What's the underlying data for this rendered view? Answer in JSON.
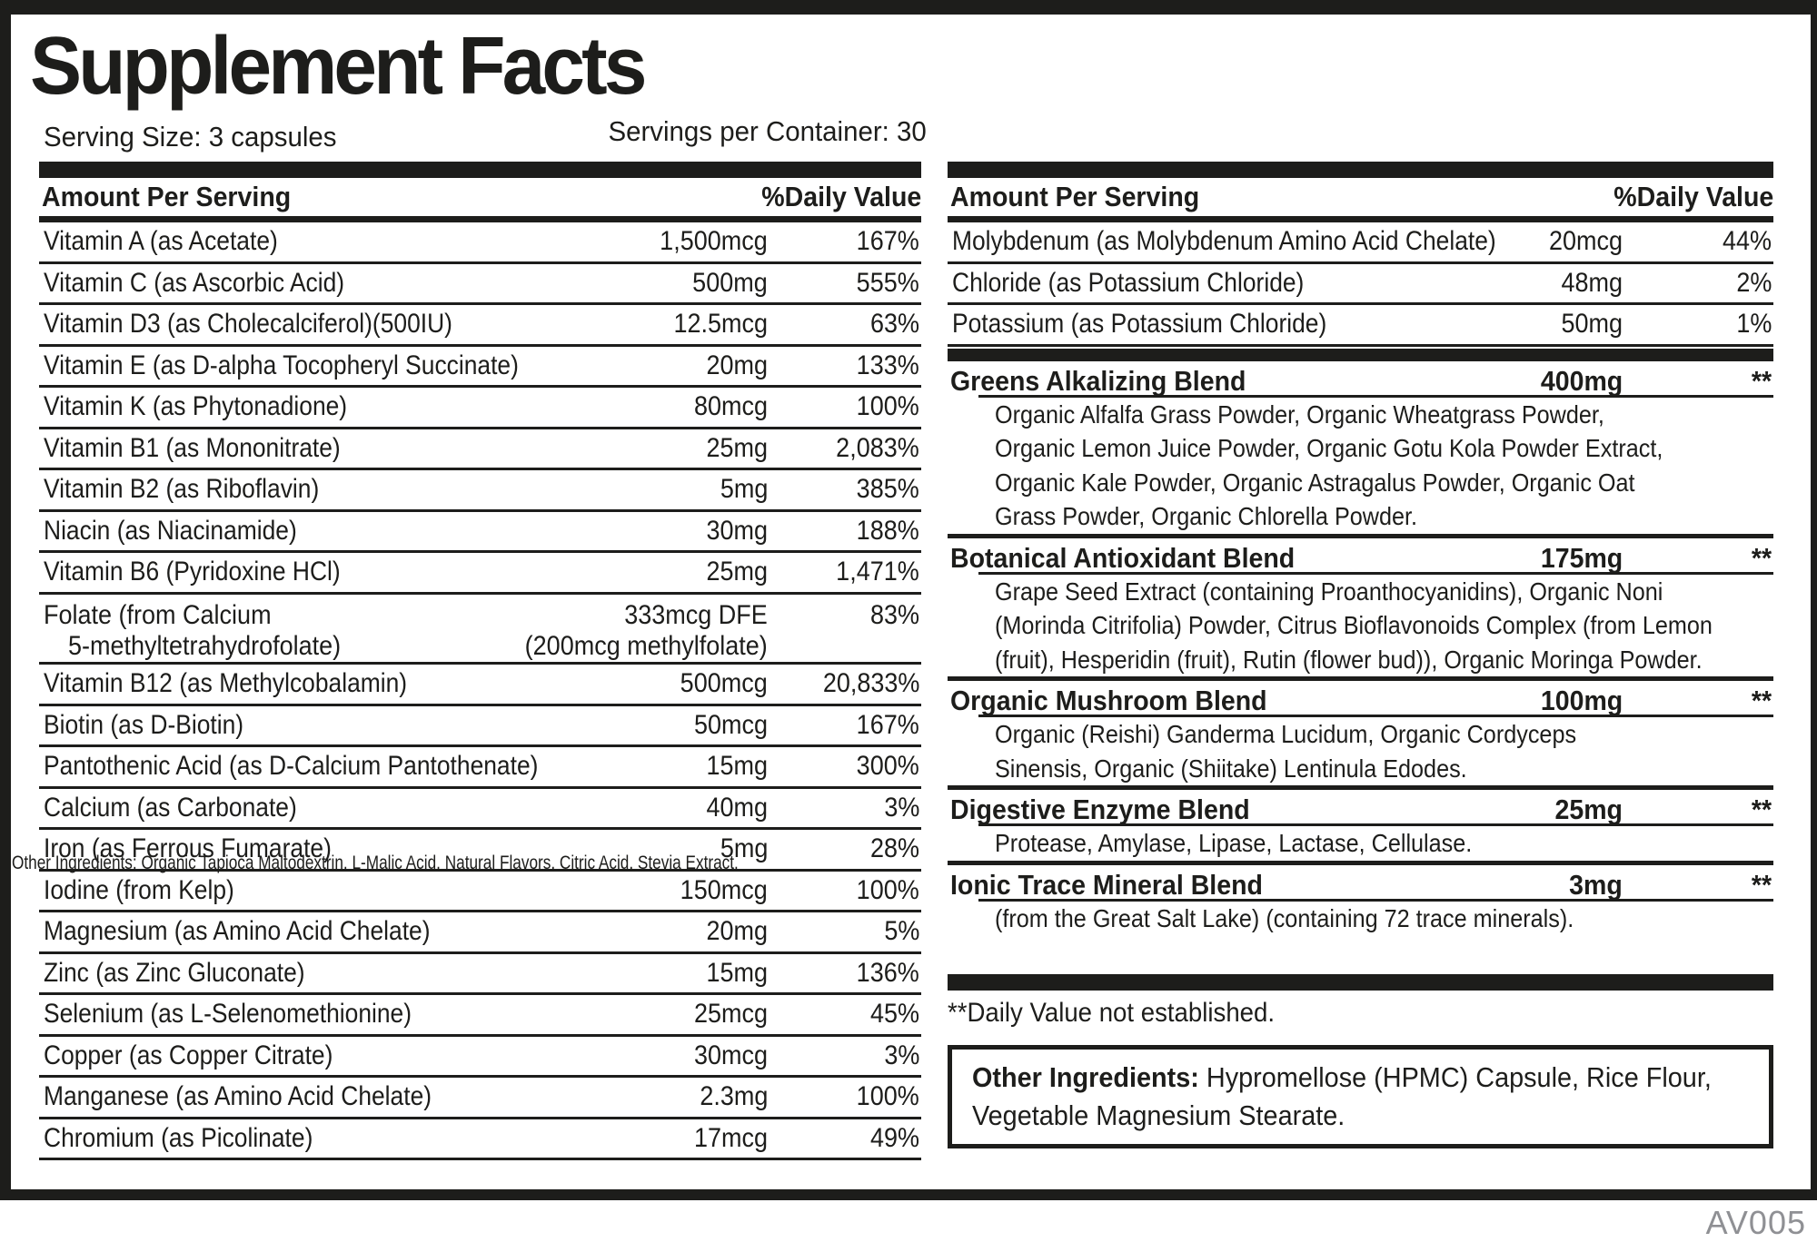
{
  "title": "Supplement Facts",
  "serving": {
    "size_label": "Serving Size: 3 capsules",
    "per_container_label": "Servings per Container: 30"
  },
  "columns": {
    "amount_header": "Amount Per Serving",
    "dv_header": "%Daily Value"
  },
  "left_table": {
    "rows": [
      {
        "name": "Vitamin A (as Acetate)",
        "amount": "1,500mcg",
        "dv": "167%"
      },
      {
        "name": "Vitamin C (as Ascorbic Acid)",
        "amount": "500mg",
        "dv": "555%"
      },
      {
        "name": "Vitamin D3 (as Cholecalciferol)(500IU)",
        "amount": "12.5mcg",
        "dv": "63%"
      },
      {
        "name": "Vitamin E (as D-alpha Tocopheryl Succinate)",
        "amount": "20mg",
        "dv": "133%"
      },
      {
        "name": "Vitamin K (as Phytonadione)",
        "amount": "80mcg",
        "dv": "100%"
      },
      {
        "name": "Vitamin B1 (as Mononitrate)",
        "amount": "25mg",
        "dv": "2,083%"
      },
      {
        "name": "Vitamin B2 (as Riboflavin)",
        "amount": "5mg",
        "dv": "385%"
      },
      {
        "name": "Niacin (as Niacinamide)",
        "amount": "30mg",
        "dv": "188%"
      },
      {
        "name": "Vitamin B6 (Pyridoxine HCl)",
        "amount": "25mg",
        "dv": "1,471%"
      },
      {
        "name_line1": "Folate (from Calcium",
        "name_line2": "5-methyltetrahydrofolate)",
        "amount_line1": "333mcg DFE",
        "amount_line2": "(200mcg methylfolate)",
        "dv": "83%"
      },
      {
        "name": "Vitamin B12 (as Methylcobalamin)",
        "amount": "500mcg",
        "dv": "20,833%"
      },
      {
        "name": "Biotin (as D-Biotin)",
        "amount": "50mcg",
        "dv": "167%"
      },
      {
        "name": "Pantothenic Acid (as D-Calcium Pantothenate)",
        "amount": "15mg",
        "dv": "300%"
      },
      {
        "name": "Calcium (as Carbonate)",
        "amount": "40mg",
        "dv": "3%"
      },
      {
        "name": "Iron (as Ferrous Fumarate)",
        "amount": "5mg",
        "dv": "28%"
      },
      {
        "name": "Iodine (from Kelp)",
        "amount": "150mcg",
        "dv": "100%"
      },
      {
        "name": "Magnesium (as Amino Acid Chelate)",
        "amount": "20mg",
        "dv": "5%"
      },
      {
        "name": "Zinc (as Zinc Gluconate)",
        "amount": "15mg",
        "dv": "136%"
      },
      {
        "name": "Selenium (as L-Selenomethionine)",
        "amount": "25mcg",
        "dv": "45%"
      },
      {
        "name": "Copper (as Copper Citrate)",
        "amount": "30mcg",
        "dv": "3%"
      },
      {
        "name": "Manganese (as Amino Acid Chelate)",
        "amount": "2.3mg",
        "dv": "100%"
      },
      {
        "name": "Chromium (as Picolinate)",
        "amount": "17mcg",
        "dv": "49%"
      }
    ]
  },
  "struck_overlay_text": "Other Ingredients: Organic Tapioca Maltodextrin, L-Malic Acid, Natural Flavors, Citric Acid, Stevia Extract.",
  "right_table": {
    "rows": [
      {
        "name": "Molybdenum (as Molybdenum Amino Acid Chelate)",
        "amount": "20mcg",
        "dv": "44%"
      },
      {
        "name": "Chloride (as Potassium Chloride)",
        "amount": "48mg",
        "dv": "2%"
      },
      {
        "name": "Potassium (as Potassium Chloride)",
        "amount": "50mg",
        "dv": "1%"
      }
    ]
  },
  "blends": [
    {
      "name": "Greens Alkalizing Blend",
      "amount": "400mg",
      "dv": "**",
      "ingredients_lines": [
        "Organic Alfalfa Grass Powder, Organic Wheatgrass Powder,",
        "Organic Lemon Juice Powder, Organic Gotu Kola Powder Extract,",
        "Organic Kale Powder, Organic Astragalus Powder, Organic Oat",
        "Grass Powder, Organic Chlorella Powder."
      ]
    },
    {
      "name": "Botanical Antioxidant Blend",
      "amount": "175mg",
      "dv": "**",
      "ingredients_lines": [
        "Grape Seed Extract (containing Proanthocyanidins), Organic Noni",
        "(Morinda Citrifolia) Powder, Citrus Bioflavonoids Complex (from Lemon",
        "(fruit), Hesperidin (fruit), Rutin (flower bud)), Organic Moringa Powder."
      ]
    },
    {
      "name": "Organic Mushroom Blend",
      "amount": "100mg",
      "dv": "**",
      "ingredients_lines": [
        "Organic (Reishi) Ganderma Lucidum, Organic Cordyceps",
        "Sinensis, Organic (Shiitake) Lentinula Edodes."
      ]
    },
    {
      "name": "Digestive Enzyme Blend",
      "amount": "25mg",
      "dv": "**",
      "ingredients_lines": [
        "Protease, Amylase, Lipase, Lactase, Cellulase."
      ]
    },
    {
      "name": "Ionic Trace Mineral Blend",
      "amount": "3mg",
      "dv": "**",
      "ingredients_lines": [
        "(from the Great Salt Lake) (containing 72 trace minerals)."
      ]
    }
  ],
  "footnote": "**Daily Value not established.",
  "other_ingredients": {
    "label": "Other Ingredients:",
    "line1_rest": " Hypromellose (HPMC) Capsule, Rice Flour,",
    "line2": "Vegetable Magnesium Stearate."
  },
  "product_code": "AV005",
  "colors": {
    "ink": "#1d1d1b",
    "code_gray": "#8f9094"
  }
}
